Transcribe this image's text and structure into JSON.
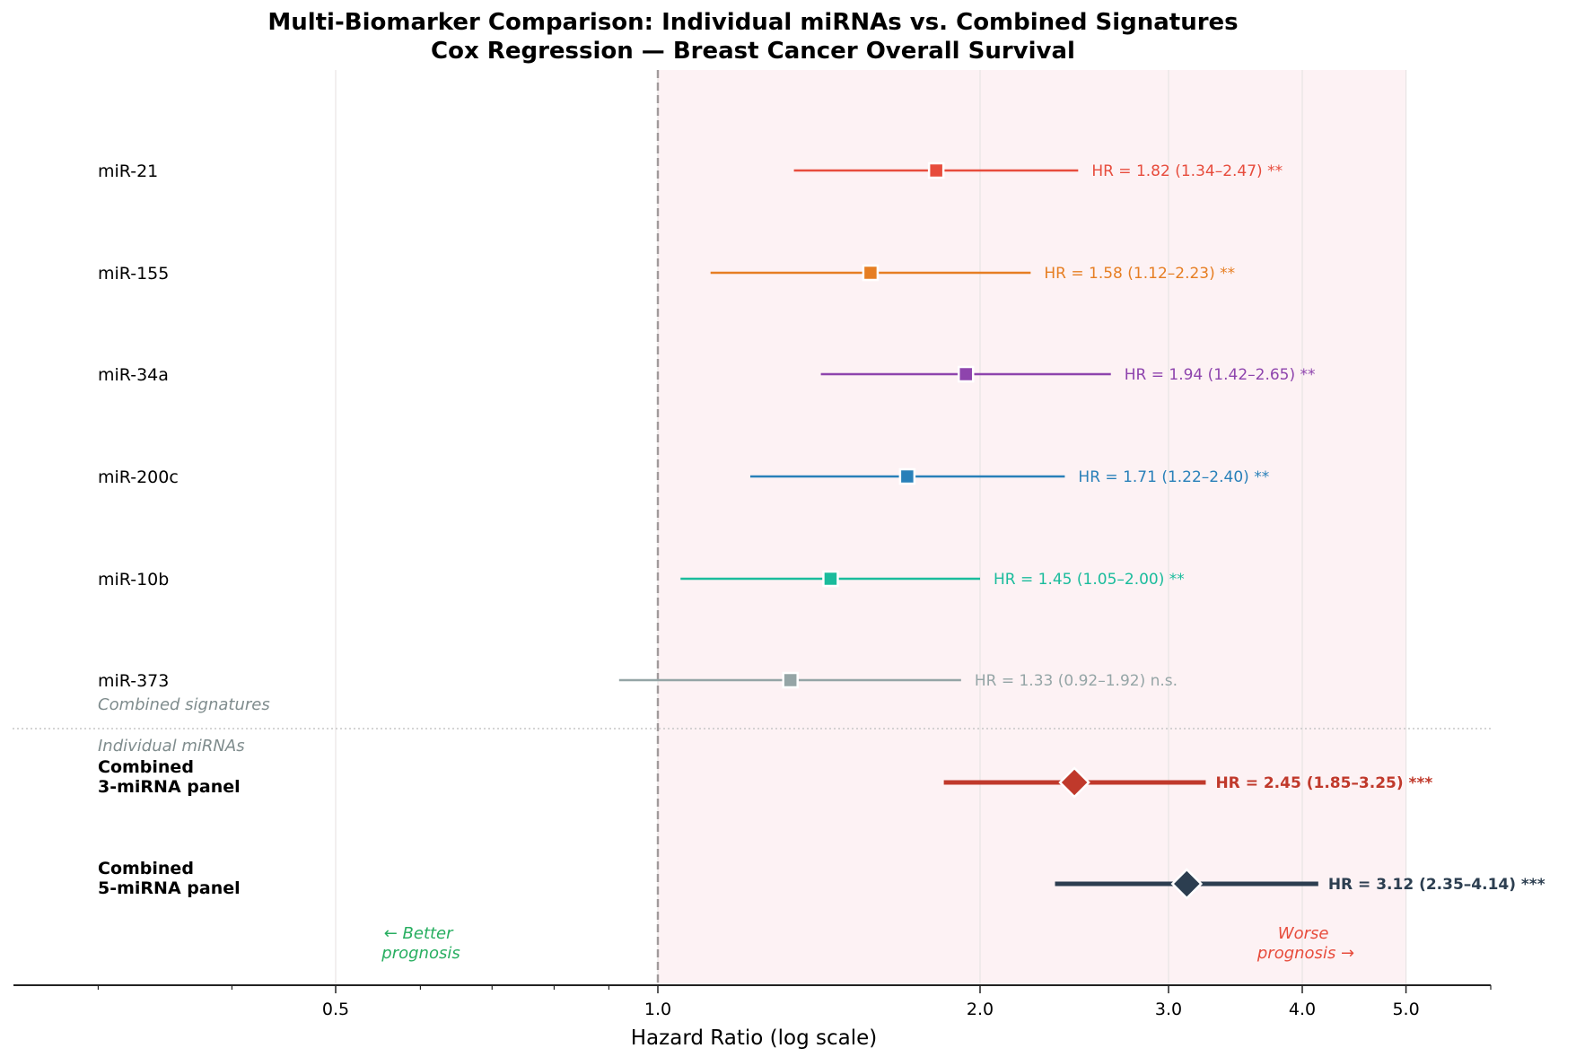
{
  "title": {
    "line1": "Multi-Biomarker Comparison: Individual miRNAs vs. Combined Signatures",
    "line2": "Cox Regression — Breast Cancer Overall Survival"
  },
  "annotations": {
    "section_upper_label": "Combined signatures",
    "section_lower_label": "Individual miRNAs",
    "better": [
      "← Better",
      "prognosis"
    ],
    "worse": [
      "Worse",
      "prognosis →"
    ],
    "better_color": "#27ae60",
    "worse_color": "#e74c3c"
  },
  "axis": {
    "xlabel": "Hazard Ratio (log scale)",
    "ticks": [
      {
        "value": 0.5,
        "label": "0.5"
      },
      {
        "value": 1.0,
        "label": "1.0"
      },
      {
        "value": 2.0,
        "label": "2.0"
      },
      {
        "value": 3.0,
        "label": "3.0"
      },
      {
        "value": 4.0,
        "label": "4.0"
      },
      {
        "value": 5.0,
        "label": "5.0"
      }
    ],
    "minor_ticks": [
      0.3,
      0.4,
      0.6,
      0.7,
      0.8,
      0.9,
      6.0
    ],
    "xlim": [
      0.25,
      6.0
    ],
    "reference_line": 1.0,
    "shaded_region": [
      1.0,
      5.0
    ],
    "shade_color": "#fdf2f4"
  },
  "chart_data": {
    "type": "forest",
    "title": "Multi-Biomarker Comparison: Individual miRNAs vs. Combined Signatures\nCox Regression — Breast Cancer Overall Survival",
    "xlabel": "Hazard Ratio (log scale)",
    "ylabel": "",
    "xscale": "log",
    "xlim": [
      0.25,
      6.0
    ],
    "xticks": [
      0.5,
      1.0,
      2.0,
      3.0,
      4.0,
      5.0
    ],
    "reference_line": 1.0,
    "grid": "x",
    "series": [
      {
        "name": "miR-21",
        "hr": 1.82,
        "ci_low": 1.34,
        "ci_high": 2.47,
        "sig": "**",
        "label": "HR = 1.82 (1.34–2.47) **",
        "color": "#e74c3c",
        "marker": "square",
        "group": "individual",
        "bold": false
      },
      {
        "name": "miR-155",
        "hr": 1.58,
        "ci_low": 1.12,
        "ci_high": 2.23,
        "sig": "**",
        "label": "HR = 1.58 (1.12–2.23) **",
        "color": "#e67e22",
        "marker": "square",
        "group": "individual",
        "bold": false
      },
      {
        "name": "miR-34a",
        "hr": 1.94,
        "ci_low": 1.42,
        "ci_high": 2.65,
        "sig": "**",
        "label": "HR = 1.94 (1.42–2.65) **",
        "color": "#8e44ad",
        "marker": "square",
        "group": "individual",
        "bold": false
      },
      {
        "name": "miR-200c",
        "hr": 1.71,
        "ci_low": 1.22,
        "ci_high": 2.4,
        "sig": "**",
        "label": "HR = 1.71 (1.22–2.40) **",
        "color": "#2980b9",
        "marker": "square",
        "group": "individual",
        "bold": false
      },
      {
        "name": "miR-10b",
        "hr": 1.45,
        "ci_low": 1.05,
        "ci_high": 2.0,
        "sig": "**",
        "label": "HR = 1.45 (1.05–2.00) **",
        "color": "#1abc9c",
        "marker": "square",
        "group": "individual",
        "bold": false
      },
      {
        "name": "miR-373",
        "hr": 1.33,
        "ci_low": 0.92,
        "ci_high": 1.92,
        "sig": "n.s.",
        "label": "HR = 1.33 (0.92–1.92) n.s.",
        "color": "#95a5a6",
        "marker": "square",
        "group": "individual",
        "bold": false
      },
      {
        "name": "Combined\n3-miRNA panel",
        "name_lines": [
          "Combined",
          "3-miRNA panel"
        ],
        "hr": 2.45,
        "ci_low": 1.85,
        "ci_high": 3.25,
        "sig": "***",
        "label": "HR = 2.45 (1.85–3.25) ***",
        "color": "#c0392b",
        "marker": "diamond",
        "group": "combined",
        "bold": true
      },
      {
        "name": "Combined\n5-miRNA panel",
        "name_lines": [
          "Combined",
          "5-miRNA panel"
        ],
        "hr": 3.12,
        "ci_low": 2.35,
        "ci_high": 4.14,
        "sig": "***",
        "label": "HR = 3.12 (2.35–4.14) ***",
        "color": "#2c3e50",
        "marker": "diamond",
        "group": "combined",
        "bold": true
      }
    ]
  }
}
